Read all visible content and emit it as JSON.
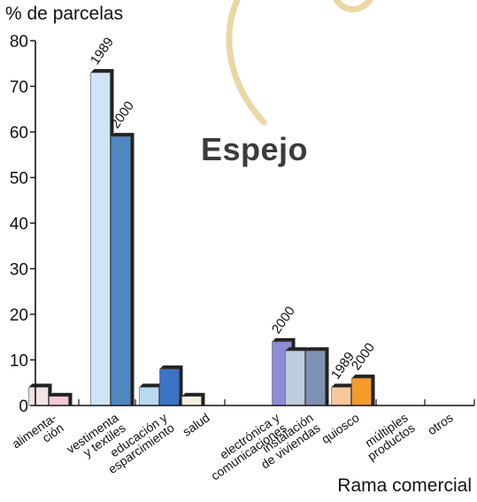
{
  "chart_data": {
    "type": "bar",
    "ylabel": "% de parcelas",
    "xlabel": "Rama comercial",
    "ylim": [
      0,
      80
    ],
    "yticks": [
      0,
      10,
      20,
      30,
      40,
      50,
      60,
      70,
      80
    ],
    "categories": [
      [
        "alimenta-",
        "ción"
      ],
      [
        "vestimenta",
        "y textiles"
      ],
      [
        "educación y",
        "esparcimiento"
      ],
      [
        "salud"
      ],
      [
        "electrónica y",
        "comunicaciones"
      ],
      [
        "instalación",
        "de viviendas"
      ],
      [
        "quiosco"
      ],
      [
        "múltiples",
        "productos"
      ],
      [
        "otros"
      ]
    ],
    "series": [
      {
        "name": "1989",
        "values": [
          4,
          73,
          4,
          2,
          null,
          12,
          4,
          null,
          null
        ]
      },
      {
        "name": "2000",
        "values": [
          2,
          59,
          8,
          null,
          14,
          12,
          6,
          null,
          null
        ]
      }
    ],
    "colors": [
      [
        "#f3e4e4",
        "#f4c8d4"
      ],
      [
        "#cfe5f6",
        "#4f87c2"
      ],
      [
        "#b9d9f1",
        "#3b74c7"
      ],
      [
        "#f3f0e3",
        "#f3f0e3"
      ],
      [
        "#b6b4e6",
        "#8e8cd6"
      ],
      [
        "#bfcde0",
        "#7f91b3"
      ],
      [
        "#f8c89a",
        "#f59b2a"
      ],
      [
        "#ffffff",
        "#ffffff"
      ],
      [
        "#ffffff",
        "#ffffff"
      ]
    ],
    "annotations": [
      {
        "text": "1989",
        "category": 1,
        "series": 0
      },
      {
        "text": "2000",
        "category": 1,
        "series": 1
      },
      {
        "text": "2000",
        "category": 4,
        "series": 1
      },
      {
        "text": "1989",
        "category": 6,
        "series": 0
      },
      {
        "text": "2000",
        "category": 6,
        "series": 1
      }
    ],
    "grid": false,
    "legend": "none"
  },
  "map_label": "Espejo",
  "decoration": {
    "arc_color": "#ead7a4"
  }
}
